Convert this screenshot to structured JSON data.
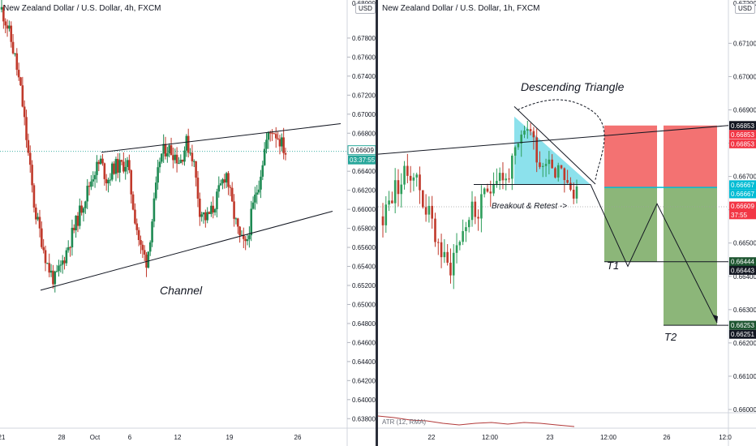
{
  "left": {
    "title": "New Zealand Dollar / U.S. Dollar, 4h, FXCM",
    "currency": "USD",
    "annotation": "Channel",
    "price_box": "0.66609",
    "countdown": "03:37:55",
    "top_clipped_label": "0.68000"
  },
  "right": {
    "title": "New Zealand Dollar / U.S. Dollar, 1h, FXCM",
    "currency": "USD",
    "pattern_label": "Descending Triangle",
    "breakout_label": "Breakout & Retest ->",
    "t1_label": "T1",
    "t2_label": "T2",
    "atr_label": "ATR (12, RMA)",
    "top_clipped_label": "0.67200",
    "price_tags": [
      {
        "text": "0.66853",
        "price": 0.66853,
        "color": "#131722"
      },
      {
        "text": "0.66853",
        "price": 0.66826,
        "color": "#f23645"
      },
      {
        "text": "0.66853",
        "price": 0.66798,
        "color": "#f23645"
      },
      {
        "text": "0.66667",
        "price": 0.66675,
        "color": "#00bcd4"
      },
      {
        "text": "0.66667",
        "price": 0.66648,
        "color": "#00bcd4"
      },
      {
        "text": "0.66609",
        "price": 0.66611,
        "color": "#f23645"
      },
      {
        "text": "37:55",
        "price": 0.66585,
        "color": "#f23645"
      },
      {
        "text": "0.66444",
        "price": 0.66444,
        "color": "#1e5631"
      },
      {
        "text": "0.66443",
        "price": 0.66418,
        "color": "#131722"
      },
      {
        "text": "0.66253",
        "price": 0.66253,
        "color": "#1e5631"
      },
      {
        "text": "0.66251",
        "price": 0.66226,
        "color": "#131722"
      }
    ]
  },
  "colors": {
    "up": "#26a69a",
    "up_dark": "#1e8a53",
    "down": "#c0392b",
    "accent": "#00bcd4",
    "sell": "#f23645",
    "target": "#1e5631"
  },
  "chart_data": [
    {
      "type": "candlestick",
      "title": "New Zealand Dollar / U.S. Dollar, 4h, FXCM",
      "ylim": [
        0.637,
        0.682
      ],
      "yticks": [
        0.678,
        0.676,
        0.674,
        0.672,
        0.67,
        0.668,
        0.666,
        0.664,
        0.662,
        0.66,
        0.658,
        0.656,
        0.654,
        0.652,
        0.65,
        0.648,
        0.646,
        0.644,
        0.642,
        0.64,
        0.638
      ],
      "xticks": [
        "21",
        "28",
        "Oct",
        "6",
        "12",
        "19",
        "26"
      ],
      "last_price": 0.66609,
      "close_path": [
        0.681,
        0.679,
        0.676,
        0.672,
        0.666,
        0.66,
        0.657,
        0.654,
        0.6525,
        0.654,
        0.656,
        0.658,
        0.66,
        0.662,
        0.664,
        0.665,
        0.663,
        0.6645,
        0.6645,
        0.665,
        0.66,
        0.656,
        0.6545,
        0.66,
        0.6655,
        0.6665,
        0.666,
        0.665,
        0.667,
        0.6655,
        0.66,
        0.659,
        0.66,
        0.662,
        0.664,
        0.66,
        0.657,
        0.656,
        0.66,
        0.663,
        0.667,
        0.6685,
        0.6675,
        0.666
      ],
      "channel": {
        "upper": [
          [
            0.666,
            0.669
          ]
        ],
        "lower": [
          [
            0.6515,
            0.6598
          ]
        ]
      }
    },
    {
      "type": "candlestick",
      "title": "New Zealand Dollar / U.S. Dollar, 1h, FXCM",
      "ylim": [
        0.66,
        0.6723
      ],
      "yticks": [
        0.671,
        0.67,
        0.669,
        0.668,
        0.667,
        0.666,
        0.665,
        0.664,
        0.663,
        0.662,
        0.661,
        0.66
      ],
      "xticks": [
        "22",
        "12:00",
        "23",
        "12:00",
        "26",
        "12:0"
      ],
      "last_price": 0.66609,
      "close_path": [
        0.6658,
        0.6662,
        0.6666,
        0.6668,
        0.667,
        0.6672,
        0.667,
        0.6664,
        0.666,
        0.6655,
        0.665,
        0.6645,
        0.6642,
        0.6648,
        0.6652,
        0.6656,
        0.666,
        0.6658,
        0.6662,
        0.6666,
        0.667,
        0.6672,
        0.6668,
        0.6672,
        0.6676,
        0.668,
        0.6686,
        0.6682,
        0.6676,
        0.6673,
        0.6678,
        0.6671,
        0.6675,
        0.667,
        0.6663,
        0.6666
      ],
      "trade": {
        "sell_entry": 0.66667,
        "stop": 0.66853,
        "target_1": 0.66444,
        "target_2": 0.66253
      },
      "indicator": "ATR (12, RMA)"
    }
  ]
}
